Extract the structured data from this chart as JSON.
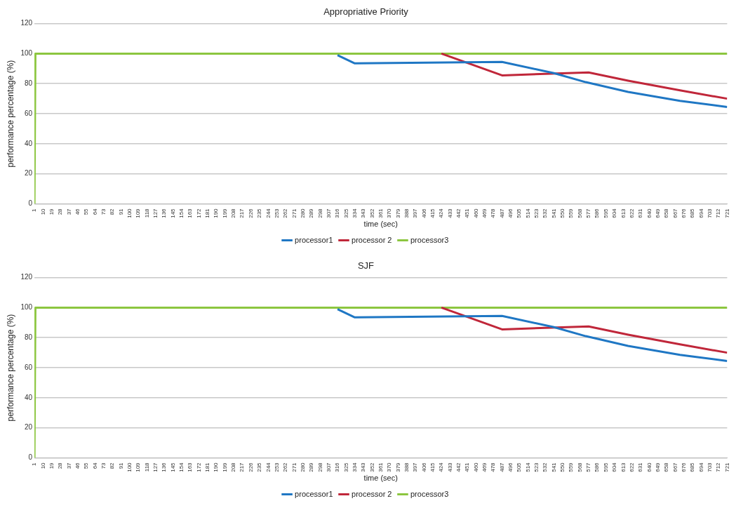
{
  "chart_data": [
    {
      "type": "line",
      "title": "Appropriative Priority",
      "xlabel": "time (sec)",
      "ylabel": "performance percentage (%)",
      "xlim": [
        1,
        721
      ],
      "xticks": [
        1,
        10,
        19,
        28,
        37,
        46,
        55,
        64,
        73,
        82,
        91,
        100,
        109,
        118,
        127,
        136,
        145,
        154,
        163,
        172,
        181,
        190,
        199,
        208,
        217,
        226,
        235,
        244,
        253,
        262,
        271,
        280,
        289,
        298,
        307,
        316,
        325,
        334,
        343,
        352,
        361,
        370,
        379,
        388,
        397,
        406,
        415,
        424,
        433,
        442,
        451,
        460,
        469,
        478,
        487,
        496,
        505,
        514,
        523,
        532,
        541,
        550,
        559,
        568,
        577,
        586,
        595,
        604,
        613,
        622,
        631,
        640,
        649,
        658,
        667,
        676,
        685,
        694,
        703,
        712,
        721
      ],
      "ylim": [
        0,
        120
      ],
      "yticks": [
        0,
        20,
        40,
        60,
        80,
        100,
        120
      ],
      "grid": "y",
      "legend": "bottom",
      "marker": "none",
      "line_style": "solid",
      "series": [
        {
          "name": "processor1",
          "color": "#1f77c4",
          "x": [
            316,
            334,
            487,
            541,
            574,
            618,
            672,
            721
          ],
          "values": [
            99,
            93.5,
            94.5,
            87,
            81,
            74.5,
            68.5,
            64.5
          ]
        },
        {
          "name": "processor 2",
          "color": "#c0273a",
          "x": [
            424,
            487,
            577,
            618,
            672,
            721
          ],
          "values": [
            100,
            85.5,
            87.5,
            82,
            75.5,
            70
          ]
        },
        {
          "name": "processor3",
          "color": "#8cc63f",
          "x": [
            1,
            2,
            721
          ],
          "values": [
            0,
            100,
            100
          ]
        }
      ]
    },
    {
      "type": "line",
      "title": "SJF",
      "xlabel": "time (sec)",
      "ylabel": "performance percentage (%)",
      "xlim": [
        1,
        721
      ],
      "xticks": [
        1,
        10,
        19,
        28,
        37,
        46,
        55,
        64,
        73,
        82,
        91,
        100,
        109,
        118,
        127,
        136,
        145,
        154,
        163,
        172,
        181,
        190,
        199,
        208,
        217,
        226,
        235,
        244,
        253,
        262,
        271,
        280,
        289,
        298,
        307,
        316,
        325,
        334,
        343,
        352,
        361,
        370,
        379,
        388,
        397,
        406,
        415,
        424,
        433,
        442,
        451,
        460,
        469,
        478,
        487,
        496,
        505,
        514,
        523,
        532,
        541,
        550,
        559,
        568,
        577,
        586,
        595,
        604,
        613,
        622,
        631,
        640,
        649,
        658,
        667,
        676,
        685,
        694,
        703,
        712,
        721
      ],
      "ylim": [
        0,
        120
      ],
      "yticks": [
        0,
        20,
        40,
        60,
        80,
        100,
        120
      ],
      "grid": "y",
      "legend": "bottom",
      "marker": "none",
      "line_style": "solid",
      "series": [
        {
          "name": "processor1",
          "color": "#1f77c4",
          "x": [
            316,
            334,
            487,
            541,
            574,
            618,
            672,
            721
          ],
          "values": [
            99,
            93.5,
            94.5,
            87,
            81,
            74.5,
            68.5,
            64.5
          ]
        },
        {
          "name": "processor 2",
          "color": "#c0273a",
          "x": [
            424,
            487,
            577,
            618,
            672,
            721
          ],
          "values": [
            100,
            85.5,
            87.5,
            82,
            75.5,
            70
          ]
        },
        {
          "name": "processor3",
          "color": "#8cc63f",
          "x": [
            1,
            2,
            721
          ],
          "values": [
            0,
            100,
            100
          ]
        }
      ]
    }
  ]
}
